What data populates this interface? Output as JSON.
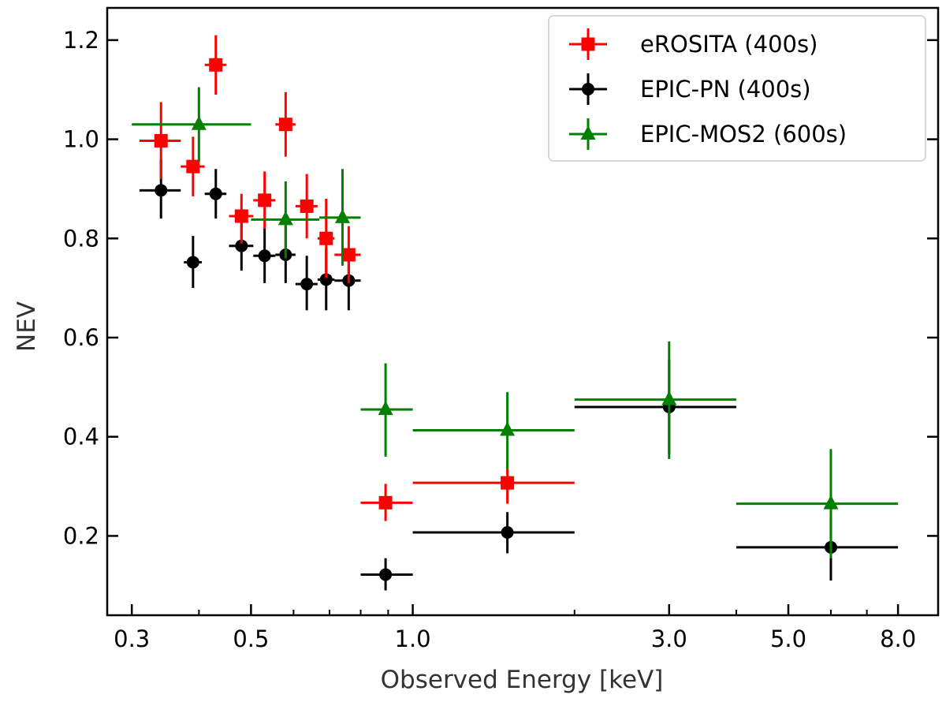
{
  "chart_data": {
    "type": "scatter",
    "xlabel": "Observed Energy [keV]",
    "ylabel": "NEV",
    "x_scale": "log",
    "xlim": [
      0.27,
      9.5
    ],
    "ylim": [
      0.04,
      1.265
    ],
    "x_ticks": [
      0.3,
      0.5,
      1.0,
      3.0,
      5.0,
      8.0
    ],
    "x_tick_labels": [
      "0.3",
      "0.5",
      "1.0",
      "3.0",
      "5.0",
      "8.0"
    ],
    "y_ticks": [
      0.2,
      0.4,
      0.6,
      0.8,
      1.0,
      1.2
    ],
    "y_tick_labels": [
      "0.2",
      "0.4",
      "0.6",
      "0.8",
      "1.0",
      "1.2"
    ],
    "grid": false,
    "legend_position": "top-right",
    "series": [
      {
        "name": "eROSITA (400s)",
        "color": "#ff0000",
        "marker": "square",
        "points": [
          {
            "x": 0.34,
            "y": 0.997,
            "xerr": [
              0.31,
              0.37
            ],
            "yerr": [
              0.92,
              1.075
            ]
          },
          {
            "x": 0.39,
            "y": 0.945,
            "xerr": [
              0.37,
              0.41
            ],
            "yerr": [
              0.885,
              1.005
            ]
          },
          {
            "x": 0.43,
            "y": 1.15,
            "xerr": [
              0.41,
              0.45
            ],
            "yerr": [
              1.09,
              1.21
            ]
          },
          {
            "x": 0.48,
            "y": 0.845,
            "xerr": [
              0.455,
              0.505
            ],
            "yerr": [
              0.79,
              0.89
            ]
          },
          {
            "x": 0.53,
            "y": 0.877,
            "xerr": [
              0.505,
              0.555
            ],
            "yerr": [
              0.82,
              0.935
            ]
          },
          {
            "x": 0.58,
            "y": 1.03,
            "xerr": [
              0.555,
              0.605
            ],
            "yerr": [
              0.965,
              1.095
            ]
          },
          {
            "x": 0.635,
            "y": 0.865,
            "xerr": [
              0.605,
              0.665
            ],
            "yerr": [
              0.8,
              0.93
            ]
          },
          {
            "x": 0.69,
            "y": 0.8,
            "xerr": [
              0.665,
              0.715
            ],
            "yerr": [
              0.72,
              0.88
            ]
          },
          {
            "x": 0.76,
            "y": 0.767,
            "xerr": [
              0.715,
              0.8
            ],
            "yerr": [
              0.71,
              0.825
            ]
          },
          {
            "x": 0.89,
            "y": 0.267,
            "xerr": [
              0.8,
              1.0
            ],
            "yerr": [
              0.23,
              0.305
            ]
          },
          {
            "x": 1.5,
            "y": 0.307,
            "xerr": [
              1.0,
              2.0
            ],
            "yerr": [
              0.265,
              0.35
            ]
          }
        ]
      },
      {
        "name": "EPIC-PN (400s)",
        "color": "#000000",
        "marker": "circle",
        "points": [
          {
            "x": 0.34,
            "y": 0.897,
            "xerr": [
              0.31,
              0.37
            ],
            "yerr": [
              0.84,
              0.96
            ]
          },
          {
            "x": 0.39,
            "y": 0.752,
            "xerr": [
              0.375,
              0.405
            ],
            "yerr": [
              0.7,
              0.805
            ]
          },
          {
            "x": 0.43,
            "y": 0.89,
            "xerr": [
              0.41,
              0.45
            ],
            "yerr": [
              0.84,
              0.94
            ]
          },
          {
            "x": 0.48,
            "y": 0.785,
            "xerr": [
              0.455,
              0.505
            ],
            "yerr": [
              0.735,
              0.835
            ]
          },
          {
            "x": 0.53,
            "y": 0.765,
            "xerr": [
              0.505,
              0.555
            ],
            "yerr": [
              0.71,
              0.82
            ]
          },
          {
            "x": 0.58,
            "y": 0.767,
            "xerr": [
              0.555,
              0.605
            ],
            "yerr": [
              0.71,
              0.825
            ]
          },
          {
            "x": 0.635,
            "y": 0.708,
            "xerr": [
              0.605,
              0.665
            ],
            "yerr": [
              0.655,
              0.765
            ]
          },
          {
            "x": 0.69,
            "y": 0.717,
            "xerr": [
              0.665,
              0.715
            ],
            "yerr": [
              0.655,
              0.78
            ]
          },
          {
            "x": 0.76,
            "y": 0.715,
            "xerr": [
              0.715,
              0.8
            ],
            "yerr": [
              0.655,
              0.77
            ]
          },
          {
            "x": 0.89,
            "y": 0.122,
            "xerr": [
              0.8,
              1.0
            ],
            "yerr": [
              0.09,
              0.155
            ]
          },
          {
            "x": 1.5,
            "y": 0.207,
            "xerr": [
              1.0,
              2.0
            ],
            "yerr": [
              0.165,
              0.248
            ]
          },
          {
            "x": 3.0,
            "y": 0.46,
            "xerr": [
              2.0,
              4.0
            ],
            "yerr": [
              0.365,
              0.555
            ]
          },
          {
            "x": 6.0,
            "y": 0.177,
            "xerr": [
              4.0,
              8.0
            ],
            "yerr": [
              0.11,
              0.24
            ]
          }
        ]
      },
      {
        "name": "EPIC-MOS2 (600s)",
        "color": "#008000",
        "marker": "triangle",
        "points": [
          {
            "x": 0.4,
            "y": 1.03,
            "xerr": [
              0.3,
              0.5
            ],
            "yerr": [
              0.955,
              1.105
            ]
          },
          {
            "x": 0.58,
            "y": 0.838,
            "xerr": [
              0.5,
              0.67
            ],
            "yerr": [
              0.76,
              0.915
            ]
          },
          {
            "x": 0.74,
            "y": 0.842,
            "xerr": [
              0.67,
              0.8
            ],
            "yerr": [
              0.745,
              0.94
            ]
          },
          {
            "x": 0.89,
            "y": 0.455,
            "xerr": [
              0.8,
              1.0
            ],
            "yerr": [
              0.36,
              0.548
            ]
          },
          {
            "x": 1.5,
            "y": 0.413,
            "xerr": [
              1.0,
              2.0
            ],
            "yerr": [
              0.335,
              0.49
            ]
          },
          {
            "x": 3.0,
            "y": 0.475,
            "xerr": [
              2.0,
              4.0
            ],
            "yerr": [
              0.355,
              0.592
            ]
          },
          {
            "x": 6.0,
            "y": 0.265,
            "xerr": [
              4.0,
              8.0
            ],
            "yerr": [
              0.155,
              0.375
            ]
          }
        ]
      }
    ]
  }
}
